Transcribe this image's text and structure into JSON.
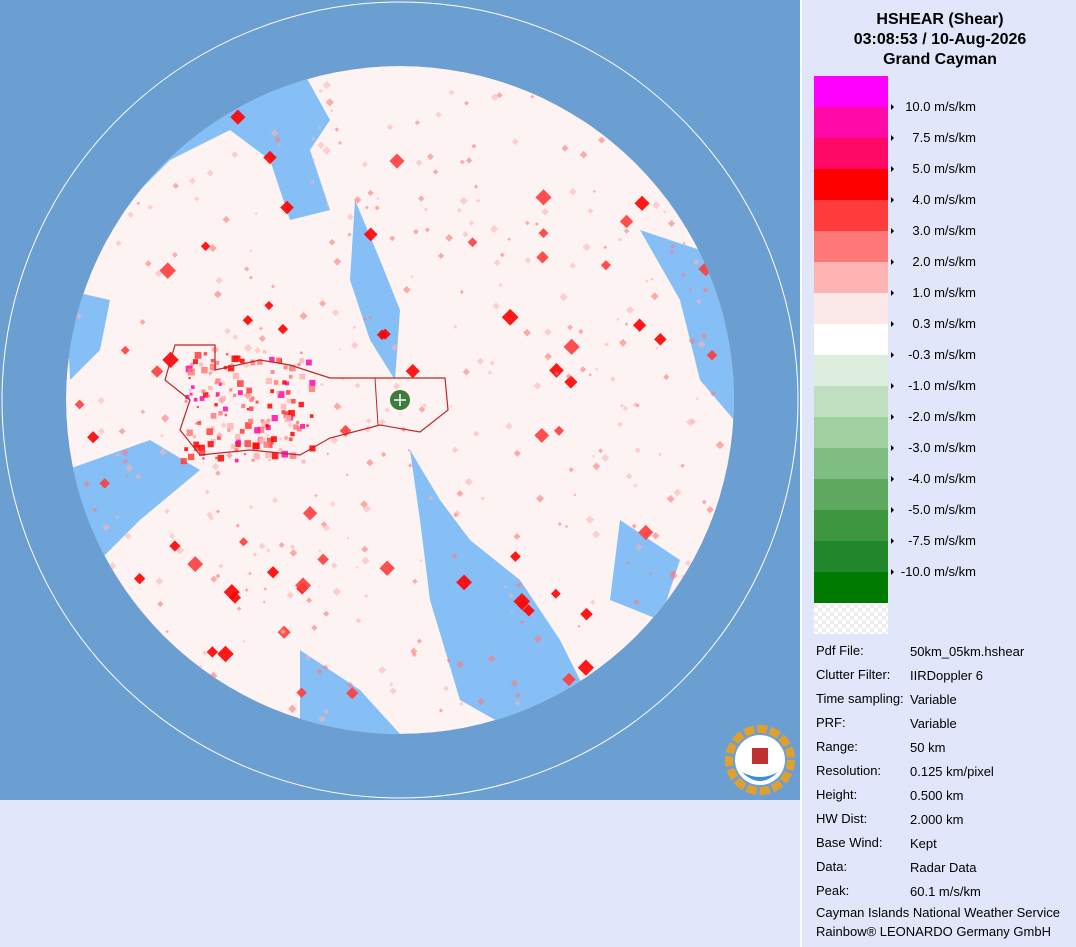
{
  "header": {
    "product": "HSHEAR (Shear)",
    "datetime": "03:08:53 / 10-Aug-2026",
    "site": "Grand Cayman"
  },
  "legend": {
    "colors": [
      "#ff00ff",
      "#ff0aa6",
      "#ff0866",
      "#ff0000",
      "#ff3c3c",
      "#ff7878",
      "#ffb4b4",
      "#fbe8e8",
      "#ffffff",
      "#deeede",
      "#c0dfc0",
      "#a0cfa0",
      "#80bd80",
      "#5fa85f",
      "#3e963e",
      "#20872a",
      "#007a00"
    ],
    "labels": [
      "10.0 m/s/km",
      "7.5 m/s/km",
      "5.0 m/s/km",
      "4.0 m/s/km",
      "3.0 m/s/km",
      "2.0 m/s/km",
      "1.0 m/s/km",
      "0.3 m/s/km",
      "-0.3 m/s/km",
      "-1.0 m/s/km",
      "-2.0 m/s/km",
      "-3.0 m/s/km",
      "-4.0 m/s/km",
      "-5.0 m/s/km",
      "-7.5 m/s/km",
      "-10.0 m/s/km"
    ]
  },
  "info": [
    [
      "Pdf File:",
      "50km_05km.hshear"
    ],
    [
      "Clutter Filter:",
      "IIRDoppler 6"
    ],
    [
      "Time sampling:",
      "Variable"
    ],
    [
      "PRF:",
      "Variable"
    ],
    [
      "Range:",
      "50 km"
    ],
    [
      "Resolution:",
      "0.125 km/pixel"
    ],
    [
      "Height:",
      "0.500 km"
    ],
    [
      "HW Dist:",
      "2.000 km"
    ],
    [
      "Base Wind:",
      "Kept"
    ],
    [
      "Data:",
      "Radar Data"
    ],
    [
      "Peak:",
      "60.1 m/s/km"
    ]
  ],
  "footer": [
    "Cayman Islands National Weather Service",
    "Rainbow® LEONARDO Germany GmbH"
  ]
}
